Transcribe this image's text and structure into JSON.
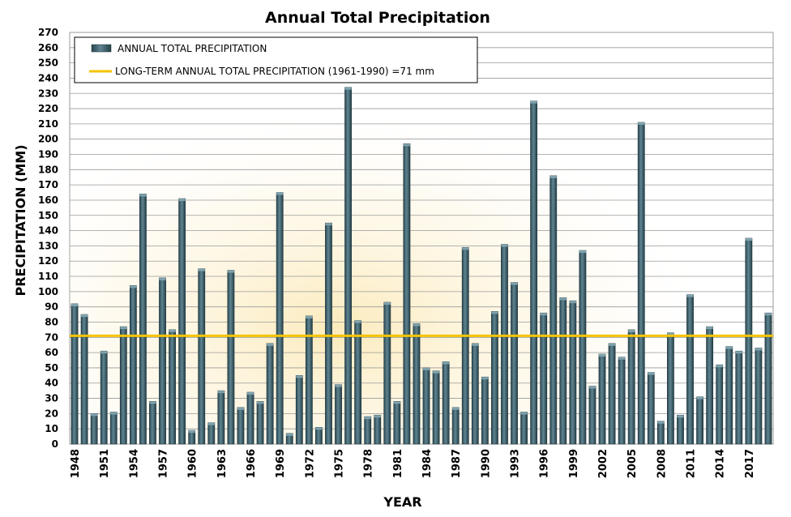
{
  "chart_data": {
    "type": "bar",
    "title": "Annual Total Precipitation",
    "xlabel": "YEAR",
    "ylabel": "PRECIPITATION  (MM)",
    "ylim": [
      0,
      270
    ],
    "ytick_step": 10,
    "grid": true,
    "legend_position": "top-left",
    "categories": [
      "1948",
      "1949",
      "1950",
      "1951",
      "1952",
      "1953",
      "1954",
      "1955",
      "1956",
      "1957",
      "1958",
      "1959",
      "1960",
      "1961",
      "1962",
      "1963",
      "1964",
      "1965",
      "1966",
      "1967",
      "1968",
      "1969",
      "1970",
      "1971",
      "1972",
      "1973",
      "1974",
      "1975",
      "1976",
      "1977",
      "1978",
      "1979",
      "1980",
      "1981",
      "1982",
      "1983",
      "1984",
      "1985",
      "1986",
      "1987",
      "1988",
      "1989",
      "1990",
      "1991",
      "1992",
      "1993",
      "1994",
      "1995",
      "1996",
      "1997",
      "1998",
      "1999",
      "2000",
      "2001",
      "2002",
      "2003",
      "2004",
      "2005",
      "2006",
      "2007",
      "2008",
      "2009",
      "2010",
      "2011",
      "2012",
      "2013",
      "2014",
      "2015",
      "2016",
      "2017",
      "2018",
      "2019"
    ],
    "x_tick_labels": [
      "1948",
      "1951",
      "1954",
      "1957",
      "1960",
      "1963",
      "1966",
      "1969",
      "1972",
      "1975",
      "1978",
      "1981",
      "1984",
      "1987",
      "1990",
      "1993",
      "1996",
      "1999",
      "2002",
      "2005",
      "2008",
      "2011",
      "2014",
      "2017"
    ],
    "series": [
      {
        "name": "ANNUAL TOTAL PRECIPITATION",
        "color": "#3b5b66",
        "values": [
          92,
          85,
          20,
          61,
          21,
          77,
          104,
          164,
          28,
          109,
          75,
          161,
          9,
          115,
          14,
          35,
          114,
          24,
          34,
          28,
          66,
          165,
          7,
          45,
          84,
          11,
          145,
          39,
          234,
          81,
          18,
          19,
          93,
          28,
          197,
          79,
          50,
          48,
          54,
          24,
          129,
          66,
          44,
          87,
          131,
          106,
          21,
          225,
          86,
          176,
          96,
          94,
          127,
          38,
          59,
          66,
          57,
          75,
          211,
          47,
          15,
          73,
          19,
          98,
          31,
          77,
          52,
          64,
          61,
          135,
          63,
          86
        ]
      }
    ],
    "reference_line": {
      "name": "LONG-TERM ANNUAL TOTAL PRECIPITATION (1961-1990)  =71 mm",
      "value": 71,
      "color": "#f5c400"
    }
  }
}
